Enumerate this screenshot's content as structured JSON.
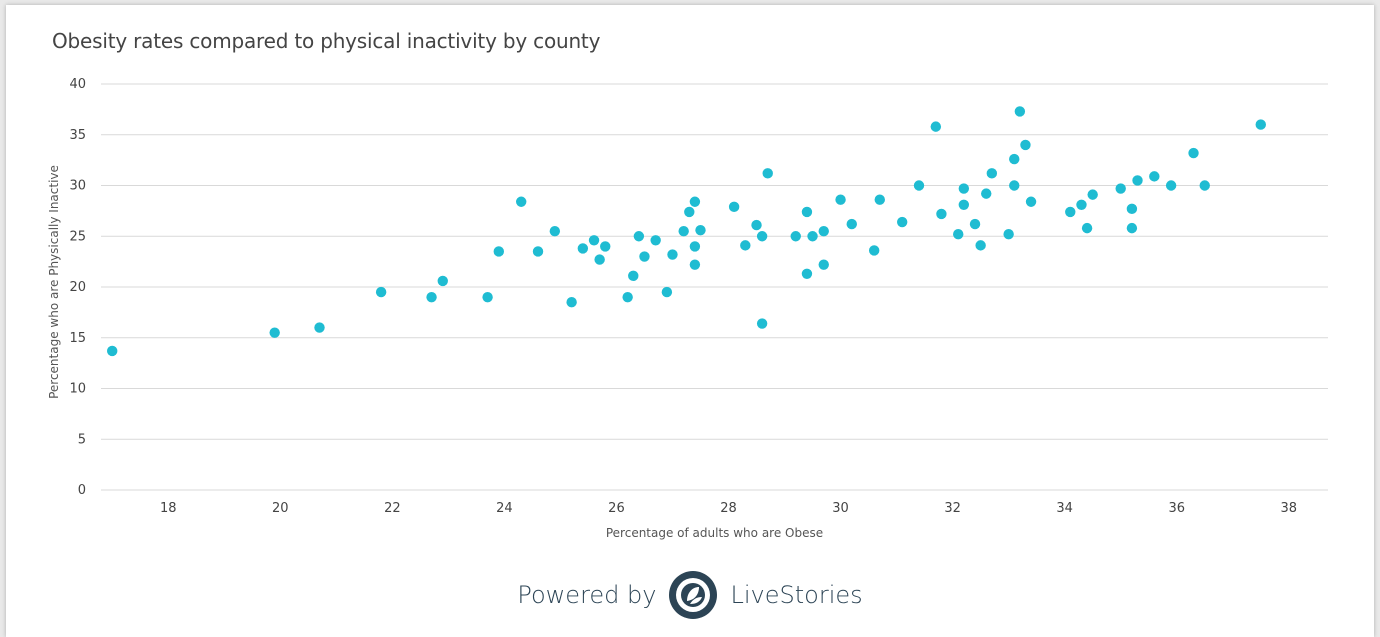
{
  "title": "Obesity rates compared to physical inactivity by county",
  "footer": {
    "powered_label": "Powered by",
    "brand": "LiveStories",
    "logo_icon": "livestories-logo-icon"
  },
  "colors": {
    "point": "#1fbcd2",
    "grid": "#d9d9d9",
    "text": "#444444",
    "footer": "#2c4455"
  },
  "chart_data": {
    "type": "scatter",
    "title": "Obesity rates compared to physical inactivity by county",
    "xlabel": "Percentage of adults who are Obese",
    "ylabel": "Percentage who are Physically Inactive",
    "xlim": [
      16.8,
      38.7
    ],
    "ylim": [
      0,
      40
    ],
    "xticks": [
      18,
      20,
      22,
      24,
      26,
      28,
      30,
      32,
      34,
      36,
      38
    ],
    "yticks": [
      0,
      5,
      10,
      15,
      20,
      25,
      30,
      35,
      40
    ],
    "grid": "horizontal",
    "points": [
      [
        17.0,
        13.7
      ],
      [
        19.9,
        15.5
      ],
      [
        20.7,
        16.0
      ],
      [
        21.8,
        19.5
      ],
      [
        22.7,
        19.0
      ],
      [
        22.9,
        20.6
      ],
      [
        23.7,
        19.0
      ],
      [
        23.9,
        23.5
      ],
      [
        24.3,
        28.4
      ],
      [
        24.6,
        23.5
      ],
      [
        24.9,
        25.5
      ],
      [
        25.2,
        18.5
      ],
      [
        25.4,
        23.8
      ],
      [
        25.6,
        24.6
      ],
      [
        25.7,
        22.7
      ],
      [
        25.8,
        24.0
      ],
      [
        26.2,
        19.0
      ],
      [
        26.3,
        21.1
      ],
      [
        26.4,
        25.0
      ],
      [
        26.5,
        23.0
      ],
      [
        26.7,
        24.6
      ],
      [
        26.9,
        19.5
      ],
      [
        27.0,
        23.2
      ],
      [
        27.2,
        25.5
      ],
      [
        27.3,
        27.4
      ],
      [
        27.4,
        28.4
      ],
      [
        27.4,
        24.0
      ],
      [
        27.4,
        22.2
      ],
      [
        27.5,
        25.6
      ],
      [
        28.1,
        27.9
      ],
      [
        28.3,
        24.1
      ],
      [
        28.5,
        26.1
      ],
      [
        28.6,
        25.0
      ],
      [
        28.6,
        16.4
      ],
      [
        28.7,
        31.2
      ],
      [
        29.2,
        25.0
      ],
      [
        29.4,
        27.4
      ],
      [
        29.4,
        21.3
      ],
      [
        29.5,
        25.0
      ],
      [
        29.7,
        22.2
      ],
      [
        29.7,
        25.5
      ],
      [
        30.0,
        28.6
      ],
      [
        30.2,
        26.2
      ],
      [
        30.6,
        23.6
      ],
      [
        30.7,
        28.6
      ],
      [
        31.1,
        26.4
      ],
      [
        31.4,
        30.0
      ],
      [
        31.7,
        35.8
      ],
      [
        31.8,
        27.2
      ],
      [
        32.1,
        25.2
      ],
      [
        32.2,
        28.1
      ],
      [
        32.2,
        29.7
      ],
      [
        32.4,
        26.2
      ],
      [
        32.5,
        24.1
      ],
      [
        32.6,
        29.2
      ],
      [
        32.7,
        31.2
      ],
      [
        33.0,
        25.2
      ],
      [
        33.1,
        32.6
      ],
      [
        33.1,
        30.0
      ],
      [
        33.2,
        37.3
      ],
      [
        33.3,
        34.0
      ],
      [
        33.4,
        28.4
      ],
      [
        34.1,
        27.4
      ],
      [
        34.3,
        28.1
      ],
      [
        34.4,
        25.8
      ],
      [
        34.5,
        29.1
      ],
      [
        35.0,
        29.7
      ],
      [
        35.2,
        27.7
      ],
      [
        35.2,
        25.8
      ],
      [
        35.3,
        30.5
      ],
      [
        35.6,
        30.9
      ],
      [
        35.9,
        30.0
      ],
      [
        36.3,
        33.2
      ],
      [
        36.5,
        30.0
      ],
      [
        37.5,
        36.0
      ]
    ]
  }
}
